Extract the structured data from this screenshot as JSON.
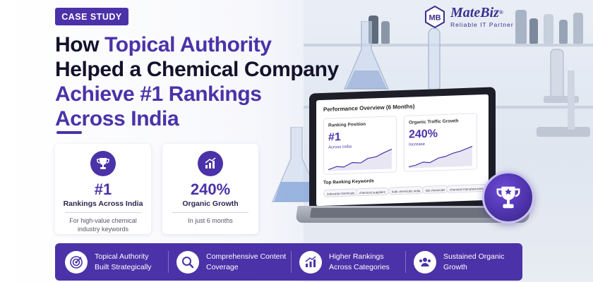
{
  "badge": "CASE STUDY",
  "logo": {
    "mark": "MB",
    "name": "MateBiz",
    "registered": "®",
    "tagline": "Reliable IT Partner"
  },
  "headline": {
    "line1_dark": "How ",
    "line1_purple": "Topical Authority",
    "line2": "Helped a Chemical Company",
    "line3": "Achieve #1 Rankings",
    "line4": "Across India"
  },
  "cards": [
    {
      "icon": "trophy-icon",
      "value": "#1",
      "label": "Rankings Across India",
      "sub1": "For high-value chemical",
      "sub2": "industry keywords"
    },
    {
      "icon": "growth-chart-icon",
      "value": "240%",
      "label": "Organic Growth",
      "sub1": "In just 6 months",
      "sub2": ""
    }
  ],
  "dashboard": {
    "title": "Performance Overview (6 Months)",
    "ranking": {
      "title": "Ranking Position",
      "value": "#1",
      "sub": "Across India"
    },
    "traffic": {
      "title": "Organic Traffic Growth",
      "value": "240%",
      "sub": "Increase"
    },
    "keywords_title": "Top Ranking Keywords",
    "keywords": [
      "industrial chemicals",
      "chemical suppliers",
      "bulk chemicals india",
      "lab chemicals",
      "chemical manufacturers"
    ]
  },
  "features": [
    {
      "icon": "target-icon",
      "line1": "Topical Authority",
      "line2": "Built Strategically"
    },
    {
      "icon": "search-icon",
      "line1": "Comprehensive Content",
      "line2": "Coverage"
    },
    {
      "icon": "bar-chart-icon",
      "line1": "Higher Rankings",
      "line2": "Across Categories"
    },
    {
      "icon": "users-icon",
      "line1": "Sustained Organic",
      "line2": "Growth"
    }
  ],
  "colors": {
    "brand": "#4b32a8",
    "dark": "#14112b"
  }
}
